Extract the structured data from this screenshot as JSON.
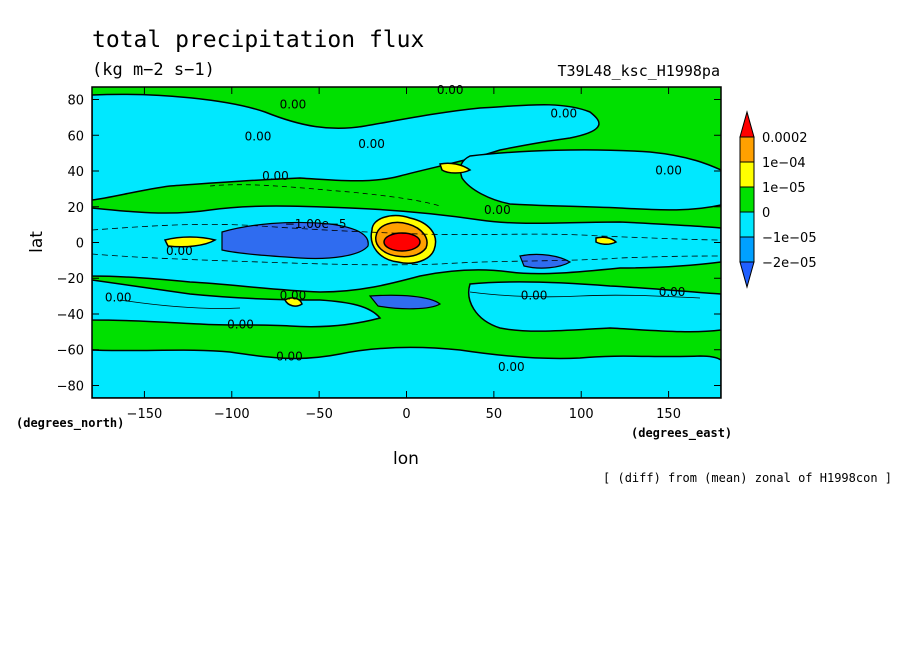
{
  "chart_data": {
    "type": "heatmap",
    "title": "total precipitation flux",
    "units": "(kg m−2 s−1)",
    "run_id": "T39L48_ksc_H1998pa",
    "note": "[ (diff) from (mean) zonal of H1998con ]",
    "xlabel": "lon",
    "ylabel": "lat",
    "x_unit_label": "(degrees_east)",
    "y_unit_label": "(degrees_north)",
    "xlim": [
      -180,
      180
    ],
    "ylim": [
      -87,
      87
    ],
    "x_ticks": [
      -150,
      -100,
      -50,
      0,
      50,
      100,
      150
    ],
    "x_tick_labels": [
      "−150",
      "−100",
      "−50",
      "0",
      "50",
      "100",
      "150"
    ],
    "y_ticks": [
      80,
      60,
      40,
      20,
      0,
      -20,
      -40,
      -60,
      -80
    ],
    "y_tick_labels": [
      "80",
      "60",
      "40",
      "20",
      "0",
      "−20",
      "−40",
      "−60",
      "−80"
    ],
    "colorbar": {
      "labels": [
        "0.0002",
        "1e−04",
        "1e−05",
        "0",
        "−1e−05",
        "−2e−05"
      ],
      "levels": [
        0.0002,
        0.0001,
        1e-05,
        0,
        -1e-05,
        -2e-05
      ],
      "colors": [
        "#ff0000",
        "#ffa000",
        "#ffff00",
        "#00e000",
        "#00e8ff",
        "#00a0ff",
        "#2060ff"
      ]
    },
    "contour_labels": [
      {
        "text": "0.00",
        "lon": 25,
        "lat": 83
      },
      {
        "text": "0.00",
        "lon": -65,
        "lat": 75
      },
      {
        "text": "0.00",
        "lon": 90,
        "lat": 70
      },
      {
        "text": "0.00",
        "lon": -85,
        "lat": 57
      },
      {
        "text": "0.00",
        "lon": -20,
        "lat": 53
      },
      {
        "text": "0.00",
        "lon": 150,
        "lat": 38
      },
      {
        "text": "0.00",
        "lon": -75,
        "lat": 35
      },
      {
        "text": "0.00",
        "lon": 52,
        "lat": 16
      },
      {
        "text": "−1.00e−5",
        "lon": -52,
        "lat": 8
      },
      {
        "text": "0.00",
        "lon": -130,
        "lat": -7
      },
      {
        "text": "0.00",
        "lon": -65,
        "lat": -32
      },
      {
        "text": "0.00",
        "lon": 73,
        "lat": -32
      },
      {
        "text": "0.00",
        "lon": -165,
        "lat": -33
      },
      {
        "text": "0.00",
        "lon": 152,
        "lat": -30
      },
      {
        "text": "0.00",
        "lon": -95,
        "lat": -48
      },
      {
        "text": "0.00",
        "lon": -67,
        "lat": -66
      },
      {
        "text": "0.00",
        "lon": 60,
        "lat": -72
      }
    ]
  }
}
